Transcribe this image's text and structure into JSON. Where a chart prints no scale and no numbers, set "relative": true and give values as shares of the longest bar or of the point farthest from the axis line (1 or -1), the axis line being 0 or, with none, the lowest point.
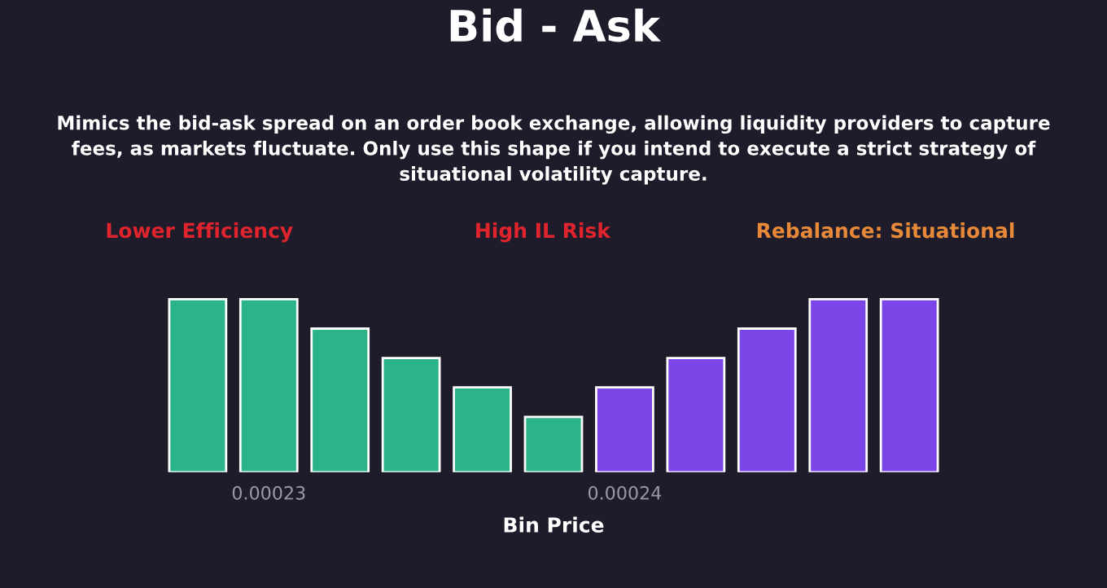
{
  "chart_data": {
    "type": "bar",
    "title": "Bid - Ask",
    "subtitle": "Mimics the bid-ask spread on an order book exchange, allowing liquidity providers to capture\nfees, as markets fluctuate. Only use this shape if you intend to execute a strict strategy of\nsituational volatility capture.",
    "annotations": [
      "Lower Efficiency",
      "High IL Risk",
      "Rebalance: Situational"
    ],
    "xlabel": "Bin Price",
    "categories": [
      null,
      "0.00023",
      null,
      null,
      null,
      null,
      "0.00024",
      null,
      null,
      null,
      null
    ],
    "relative": true,
    "values": [
      1,
      1,
      0.83,
      0.66,
      0.49,
      0.32,
      0.49,
      0.66,
      0.83,
      1,
      1
    ],
    "colors": [
      "#2bb38a",
      "#2bb38a",
      "#2bb38a",
      "#2bb38a",
      "#2bb38a",
      "#2bb38a",
      "#7b45e8",
      "#7b45e8",
      "#7b45e8",
      "#7b45e8",
      "#7b45e8"
    ],
    "grid": false,
    "legend": false
  }
}
